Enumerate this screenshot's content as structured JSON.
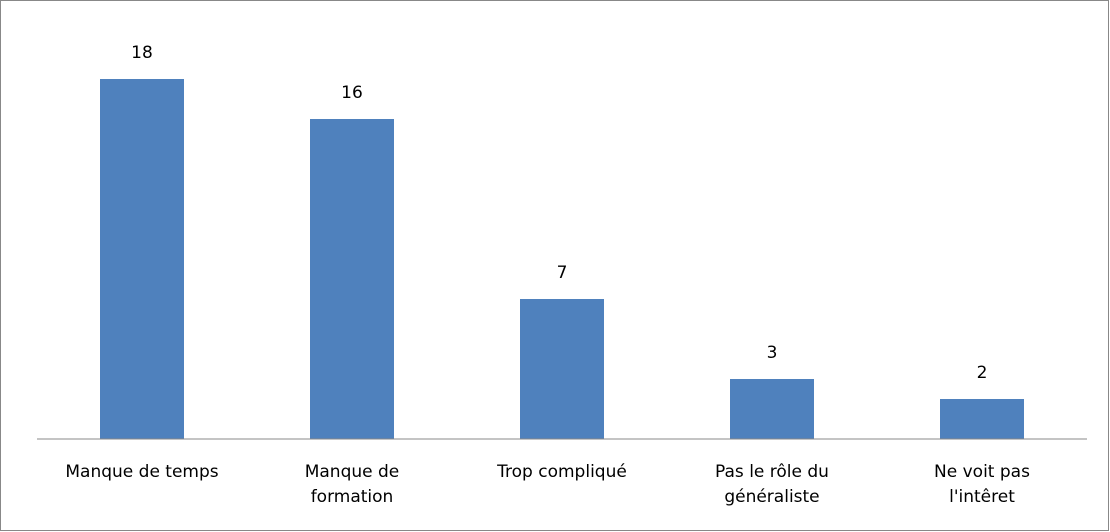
{
  "chart_data": {
    "type": "bar",
    "categories": [
      "Manque de temps",
      "Manque de\nformation",
      "Trop compliqué",
      "Pas le rôle du\ngénéraliste",
      "Ne voit pas\nl'intêret"
    ],
    "values": [
      18,
      16,
      7,
      3,
      2
    ],
    "color": "#4f81bd",
    "ylim": [
      0,
      20
    ],
    "grid": false
  }
}
